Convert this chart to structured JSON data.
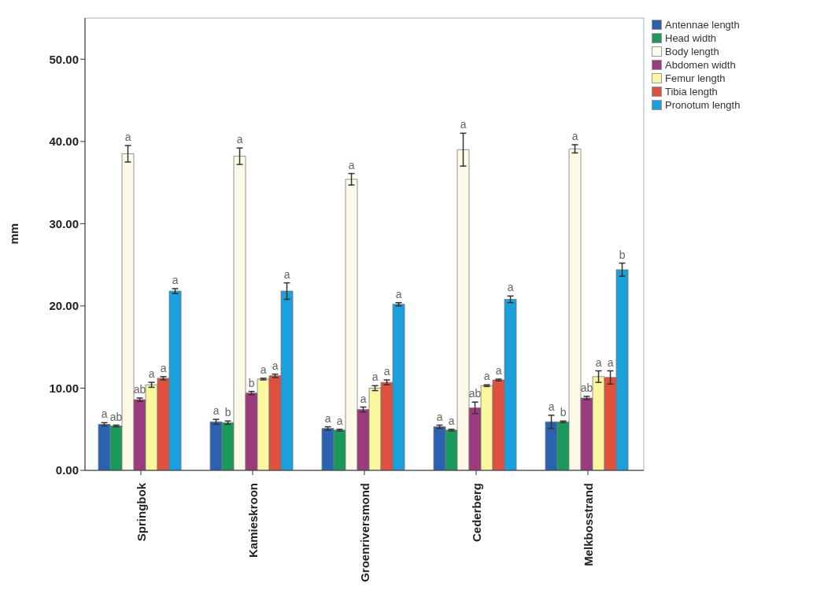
{
  "chart_data": {
    "type": "bar",
    "ylabel": "mm",
    "categories": [
      "Springbok",
      "Kamieskroon",
      "Groenriversmond",
      "Cederberg",
      "Melkbosstrand"
    ],
    "ylim": [
      0,
      55
    ],
    "yticks": [
      {
        "value": 0,
        "label": "0.00"
      },
      {
        "value": 10,
        "label": "10.00"
      },
      {
        "value": 20,
        "label": "20.00"
      },
      {
        "value": 30,
        "label": "30.00"
      },
      {
        "value": 40,
        "label": "40.00"
      },
      {
        "value": 50,
        "label": "50.00"
      }
    ],
    "legend": "top right",
    "series": [
      {
        "name": "Antennae length",
        "color": "#2a62b0",
        "values": [
          5.6,
          5.9,
          5.1,
          5.3,
          5.9
        ],
        "errors": [
          0.2,
          0.3,
          0.2,
          0.2,
          0.8
        ],
        "value_labels": [
          "a",
          "a",
          "a",
          "a",
          "a"
        ]
      },
      {
        "name": "Head width",
        "color": "#1a9a5a",
        "values": [
          5.4,
          5.8,
          4.9,
          4.9,
          5.9
        ],
        "errors": [
          0.1,
          0.2,
          0.1,
          0.1,
          0.1
        ],
        "value_labels": [
          "ab",
          "b",
          "a",
          "a",
          "b"
        ]
      },
      {
        "name": "Body length",
        "color": "#fdfbe8",
        "values": [
          38.5,
          38.2,
          35.4,
          39.0,
          39.1
        ],
        "errors": [
          1.0,
          1.0,
          0.7,
          2.0,
          0.5
        ],
        "value_labels": [
          "a",
          "a",
          "a",
          "a",
          "a"
        ]
      },
      {
        "name": "Abdomen width",
        "color": "#9b3b7e",
        "values": [
          8.6,
          9.4,
          7.4,
          7.6,
          8.8
        ],
        "errors": [
          0.2,
          0.2,
          0.3,
          0.7,
          0.2
        ],
        "value_labels": [
          "ab",
          "b",
          "a",
          "ab",
          "ab"
        ]
      },
      {
        "name": "Femur length",
        "color": "#fbf7a0",
        "values": [
          10.4,
          11.1,
          10.0,
          10.3,
          11.4
        ],
        "errors": [
          0.3,
          0.1,
          0.3,
          0.1,
          0.7
        ],
        "value_labels": [
          "a",
          "a",
          "a",
          "a",
          "a"
        ]
      },
      {
        "name": "Tibia length",
        "color": "#e0503e",
        "values": [
          11.2,
          11.5,
          10.7,
          11.0,
          11.3
        ],
        "errors": [
          0.2,
          0.2,
          0.3,
          0.1,
          0.8
        ],
        "value_labels": [
          "a",
          "a",
          "a",
          "a",
          "a"
        ]
      },
      {
        "name": "Pronotum length",
        "color": "#1aa0dc",
        "values": [
          21.8,
          21.8,
          20.2,
          20.8,
          24.4
        ],
        "errors": [
          0.3,
          1.0,
          0.2,
          0.4,
          0.8
        ],
        "value_labels": [
          "a",
          "a",
          "a",
          "a",
          "b"
        ]
      }
    ]
  }
}
